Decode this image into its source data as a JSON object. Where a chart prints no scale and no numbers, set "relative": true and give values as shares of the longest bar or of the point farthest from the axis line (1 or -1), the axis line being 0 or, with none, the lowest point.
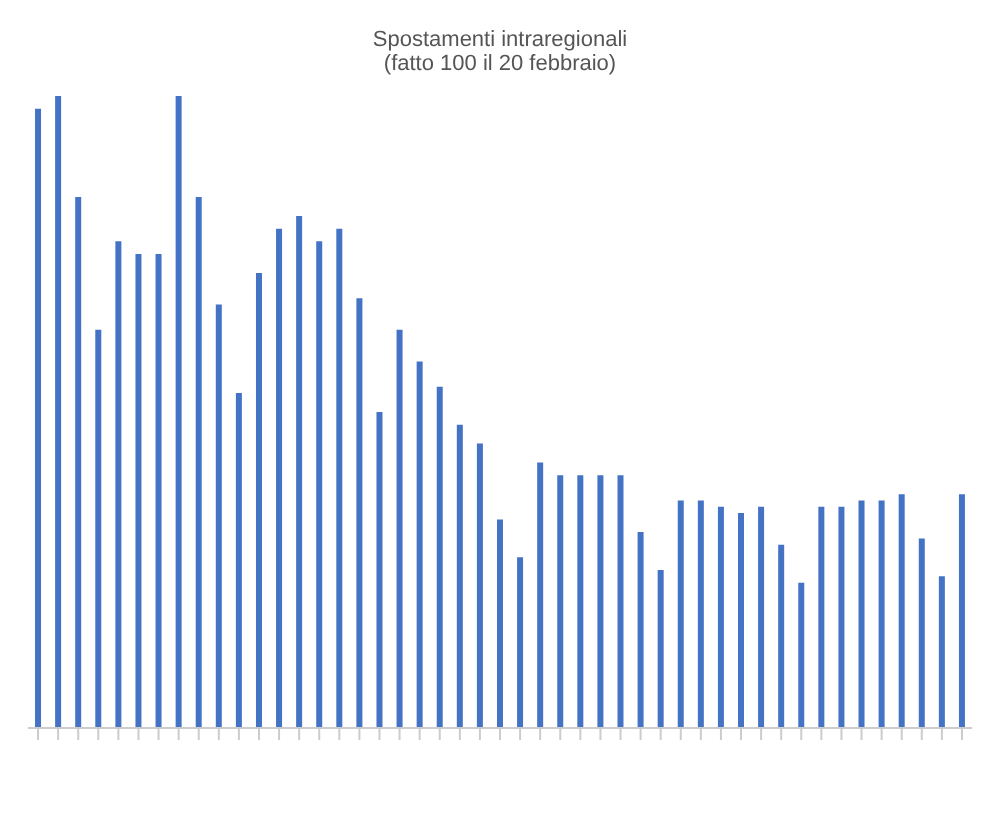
{
  "chart_data": {
    "type": "bar",
    "title": "Spostamenti intraregionali",
    "subtitle": "(fatto 100 il 20 febbraio)",
    "relative": true,
    "color": "#4472c4",
    "categories": [
      null,
      null,
      null,
      null,
      null,
      null,
      null,
      null,
      null,
      null,
      null,
      null,
      null,
      null,
      null,
      null,
      null,
      null,
      null,
      null,
      null,
      null,
      null,
      null,
      null,
      null,
      null,
      null,
      null,
      null,
      null,
      null,
      null,
      null,
      null,
      null,
      null,
      null,
      null,
      null,
      null,
      null,
      null,
      null,
      null,
      null,
      null
    ],
    "values": [
      0.98,
      1,
      0.84,
      0.63,
      0.77,
      0.75,
      0.75,
      1,
      0.84,
      0.67,
      0.53,
      0.72,
      0.79,
      0.81,
      0.77,
      0.79,
      0.68,
      0.5,
      0.63,
      0.58,
      0.54,
      0.48,
      0.45,
      0.33,
      0.27,
      0.42,
      0.4,
      0.4,
      0.4,
      0.4,
      0.31,
      0.25,
      0.36,
      0.36,
      0.35,
      0.34,
      0.35,
      0.29,
      0.23,
      0.35,
      0.35,
      0.36,
      0.36,
      0.37,
      0.3,
      0.24,
      0.37
    ]
  }
}
